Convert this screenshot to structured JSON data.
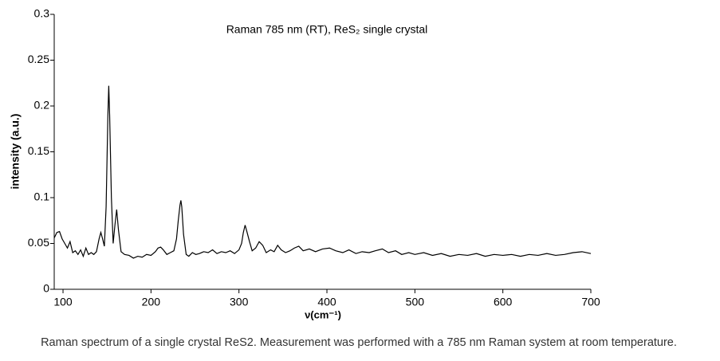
{
  "chart_data": {
    "type": "line",
    "title": "Raman 785 nm (RT), ReS₂ single crystal",
    "x_label": "ν(cm⁻¹)",
    "y_label": "intensity (a.u.)",
    "caption": "Raman spectrum of a single crystal ReS2. Measurement was performed with a 785 nm Raman system at room temperature.",
    "x": [
      90,
      93,
      96,
      99,
      102,
      105,
      108,
      111,
      114,
      117,
      120,
      123,
      126,
      129,
      132,
      135,
      138,
      141,
      143,
      145,
      147,
      149,
      151,
      152,
      153,
      155,
      157,
      159,
      161,
      163,
      166,
      170,
      175,
      180,
      185,
      190,
      195,
      200,
      205,
      208,
      211,
      214,
      218,
      222,
      226,
      229,
      231,
      233,
      234,
      235,
      237,
      240,
      243,
      247,
      251,
      255,
      260,
      265,
      270,
      275,
      280,
      285,
      290,
      295,
      300,
      303,
      305,
      307,
      309,
      312,
      315,
      319,
      323,
      327,
      331,
      336,
      340,
      344,
      348,
      353,
      358,
      363,
      368,
      373,
      380,
      387,
      395,
      403,
      410,
      418,
      425,
      433,
      440,
      448,
      455,
      463,
      470,
      478,
      485,
      493,
      500,
      510,
      520,
      530,
      540,
      550,
      560,
      570,
      580,
      590,
      600,
      610,
      620,
      630,
      640,
      650,
      660,
      670,
      680,
      690,
      700
    ],
    "series": [
      {
        "color": "#000000",
        "values": [
          0.056,
          0.062,
          0.063,
          0.055,
          0.05,
          0.045,
          0.052,
          0.04,
          0.042,
          0.038,
          0.043,
          0.036,
          0.045,
          0.038,
          0.04,
          0.038,
          0.041,
          0.055,
          0.062,
          0.055,
          0.047,
          0.09,
          0.19,
          0.222,
          0.19,
          0.1,
          0.05,
          0.07,
          0.087,
          0.065,
          0.041,
          0.038,
          0.037,
          0.034,
          0.036,
          0.035,
          0.038,
          0.037,
          0.041,
          0.045,
          0.046,
          0.043,
          0.038,
          0.04,
          0.042,
          0.055,
          0.075,
          0.092,
          0.097,
          0.09,
          0.06,
          0.038,
          0.036,
          0.04,
          0.038,
          0.039,
          0.041,
          0.04,
          0.043,
          0.039,
          0.041,
          0.04,
          0.042,
          0.039,
          0.043,
          0.05,
          0.062,
          0.07,
          0.063,
          0.052,
          0.042,
          0.045,
          0.052,
          0.048,
          0.04,
          0.043,
          0.041,
          0.048,
          0.043,
          0.04,
          0.042,
          0.045,
          0.047,
          0.042,
          0.044,
          0.041,
          0.044,
          0.045,
          0.042,
          0.04,
          0.043,
          0.039,
          0.041,
          0.04,
          0.042,
          0.044,
          0.04,
          0.042,
          0.038,
          0.04,
          0.038,
          0.04,
          0.037,
          0.039,
          0.036,
          0.038,
          0.037,
          0.039,
          0.036,
          0.038,
          0.037,
          0.038,
          0.036,
          0.038,
          0.037,
          0.039,
          0.037,
          0.038,
          0.04,
          0.041,
          0.039
        ]
      }
    ],
    "xlim": [
      90,
      700
    ],
    "ylim": [
      0,
      0.3
    ],
    "xticks": [
      100,
      200,
      300,
      400,
      500,
      600,
      700
    ],
    "yticks": [
      0,
      0.05,
      0.1,
      0.15,
      0.2,
      0.25,
      0.3
    ]
  }
}
